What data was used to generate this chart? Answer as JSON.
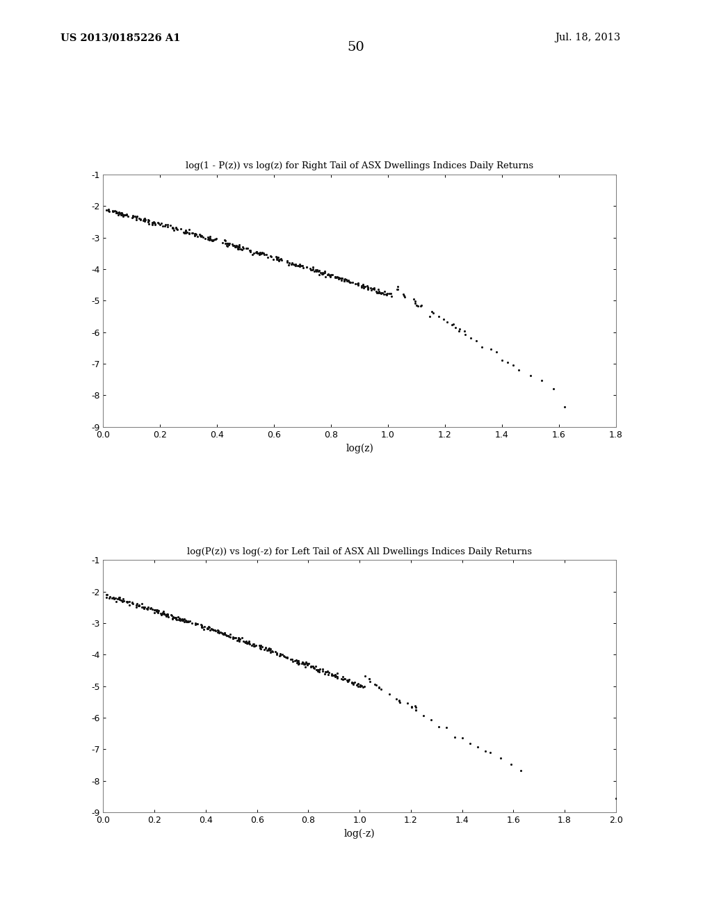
{
  "title1": "log(1 - P(z)) vs log(z) for Right Tail of ASX Dwellings Indices Daily Returns",
  "title2": "log(P(z)) vs log(-z) for Left Tail of ASX All Dwellings Indices Daily Returns",
  "xlabel1": "log(z)",
  "xlabel2": "log(-z)",
  "xlim1": [
    0,
    1.8
  ],
  "xlim2": [
    0,
    2.0
  ],
  "ylim": [
    -9,
    -1
  ],
  "xticks1": [
    0,
    0.2,
    0.4,
    0.6,
    0.8,
    1.0,
    1.2,
    1.4,
    1.6,
    1.8
  ],
  "xticks2": [
    0,
    0.2,
    0.4,
    0.6,
    0.8,
    1.0,
    1.2,
    1.4,
    1.6,
    1.8,
    2.0
  ],
  "yticks": [
    -9,
    -8,
    -7,
    -6,
    -5,
    -4,
    -3,
    -2,
    -1
  ],
  "dot_color": "#111111",
  "dot_size": 5,
  "background_color": "#ffffff",
  "page_number": "50",
  "patent_number": "US 2013/0185226 A1",
  "patent_date": "Jul. 18, 2013"
}
